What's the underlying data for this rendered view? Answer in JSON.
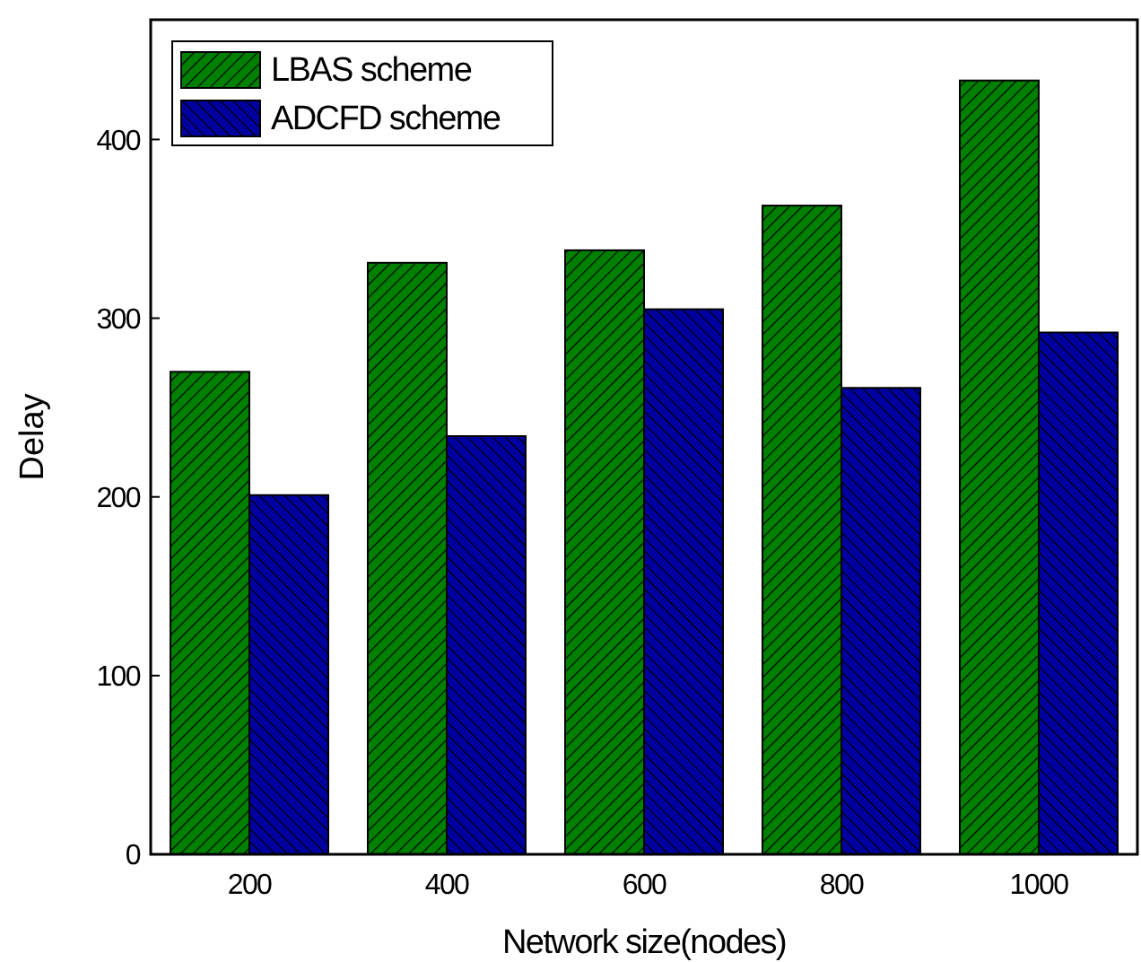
{
  "chart_data": {
    "type": "bar",
    "xlabel": "Network size(nodes)",
    "ylabel": "Delay",
    "categories": [
      "200",
      "400",
      "600",
      "800",
      "1000"
    ],
    "series": [
      {
        "name": "LBAS scheme",
        "color": "#008000",
        "values": [
          270,
          331,
          338,
          363,
          433
        ]
      },
      {
        "name": "ADCFD scheme",
        "color": "#0000a0",
        "values": [
          201,
          234,
          305,
          261,
          292
        ]
      }
    ],
    "ylim": [
      0,
      467
    ],
    "yticks": [
      0,
      100,
      200,
      300,
      400
    ],
    "grid": false,
    "legend": "top left"
  }
}
